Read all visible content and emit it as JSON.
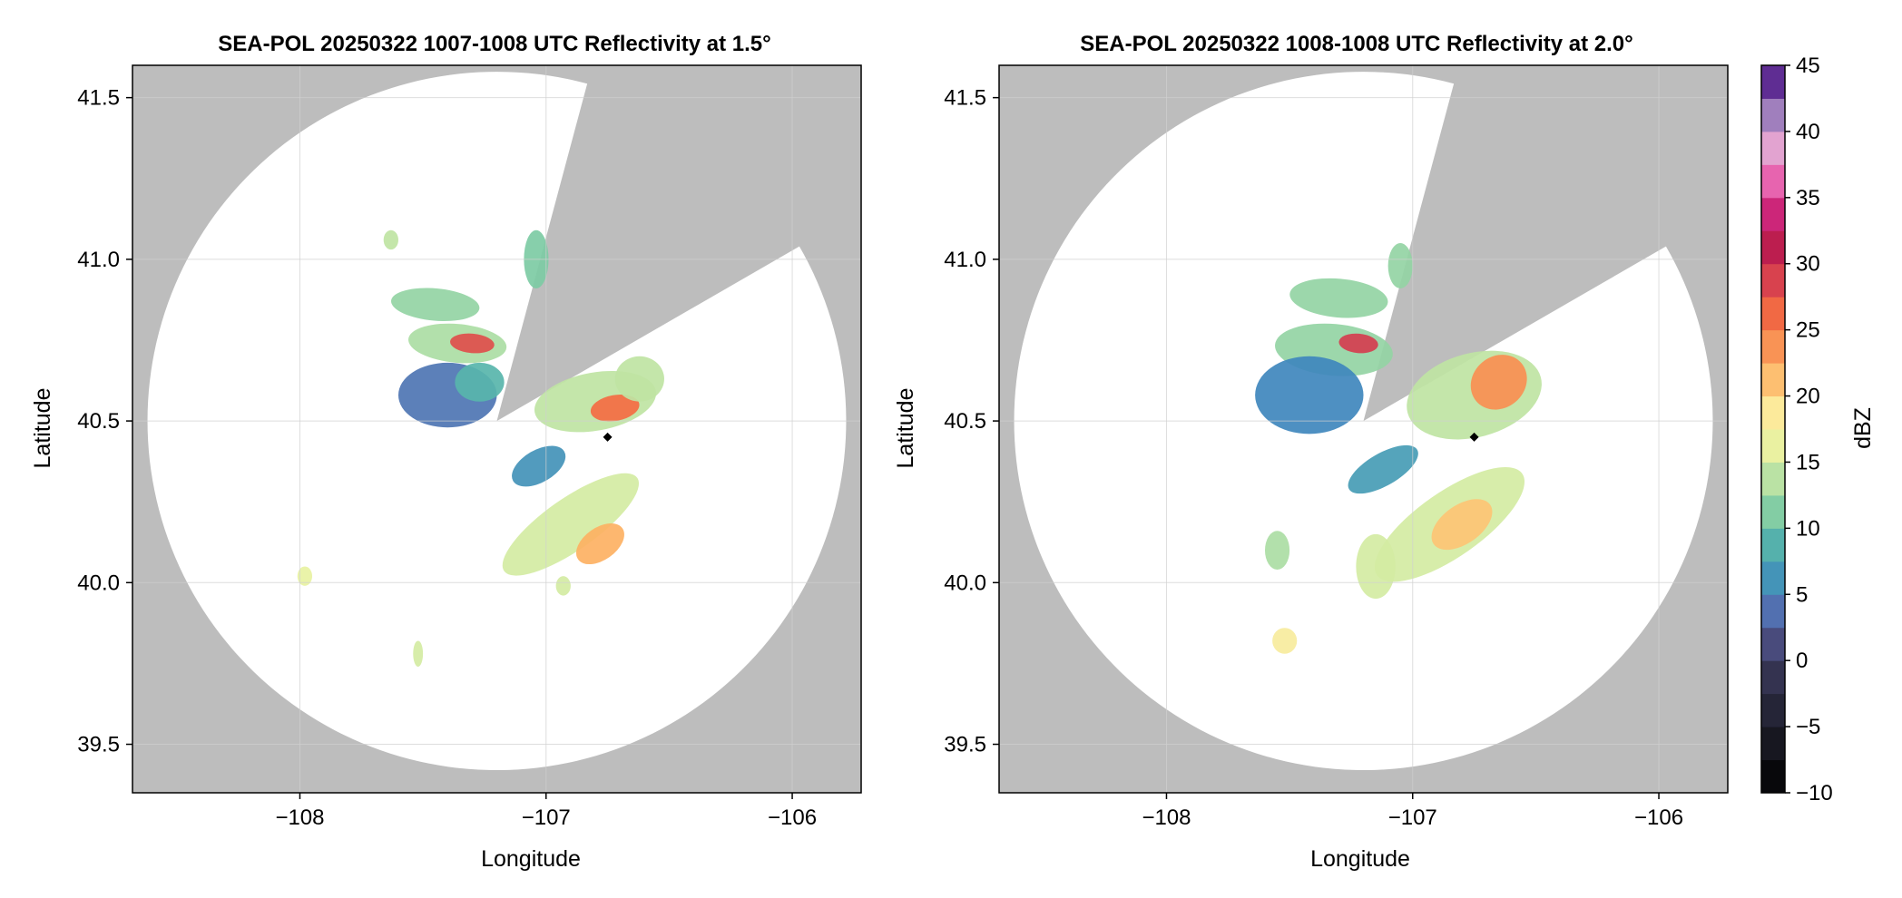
{
  "chart_data": [
    {
      "type": "heatmap",
      "title": "SEA-POL 20250322 1007-1008 UTC Reflectivity at 1.5°",
      "xlabel": "Longitude",
      "ylabel": "Latitude",
      "xlim": [
        -108.68,
        -105.72
      ],
      "ylim": [
        39.35,
        41.6
      ],
      "xticks": [
        -108,
        -107,
        -106
      ],
      "xtick_labels": [
        "−108",
        "−107",
        "−106"
      ],
      "yticks": [
        39.5,
        40.0,
        40.5,
        41.0,
        41.5
      ],
      "ytick_labels": [
        "39.5",
        "40.0",
        "40.5",
        "41.0",
        "41.5"
      ],
      "grid": true,
      "radar_center": [
        -107.2,
        40.5
      ],
      "coverage_radius_deg_lat": 1.08,
      "blocked_azimuth_ranges_deg": [
        [
          15,
          60
        ]
      ],
      "marker": {
        "lon": -106.75,
        "lat": 40.45,
        "symbol": "diamond",
        "color": "#000000"
      },
      "echo_cells": [
        {
          "lon": -106.8,
          "lat": 40.56,
          "rx": 0.25,
          "ry": 0.09,
          "rot": -10,
          "dbz": 14
        },
        {
          "lon": -106.72,
          "lat": 40.54,
          "rx": 0.1,
          "ry": 0.04,
          "rot": -10,
          "dbz": 26
        },
        {
          "lon": -106.62,
          "lat": 40.63,
          "rx": 0.1,
          "ry": 0.07,
          "rot": 0,
          "dbz": 14
        },
        {
          "lon": -107.36,
          "lat": 40.74,
          "rx": 0.2,
          "ry": 0.06,
          "rot": 5,
          "dbz": 13
        },
        {
          "lon": -107.3,
          "lat": 40.74,
          "rx": 0.09,
          "ry": 0.03,
          "rot": 5,
          "dbz": 28
        },
        {
          "lon": -107.45,
          "lat": 40.86,
          "rx": 0.18,
          "ry": 0.05,
          "rot": 5,
          "dbz": 12
        },
        {
          "lon": -107.4,
          "lat": 40.58,
          "rx": 0.2,
          "ry": 0.1,
          "rot": 0,
          "dbz": 4
        },
        {
          "lon": -107.27,
          "lat": 40.62,
          "rx": 0.1,
          "ry": 0.06,
          "rot": 0,
          "dbz": 9
        },
        {
          "lon": -107.04,
          "lat": 41.0,
          "rx": 0.05,
          "ry": 0.09,
          "rot": 0,
          "dbz": 11
        },
        {
          "lon": -106.9,
          "lat": 40.18,
          "rx": 0.33,
          "ry": 0.08,
          "rot": -35,
          "dbz": 15
        },
        {
          "lon": -106.78,
          "lat": 40.12,
          "rx": 0.11,
          "ry": 0.05,
          "rot": -35,
          "dbz": 22
        },
        {
          "lon": -107.03,
          "lat": 40.36,
          "rx": 0.12,
          "ry": 0.05,
          "rot": -30,
          "dbz": 6
        },
        {
          "lon": -107.98,
          "lat": 40.02,
          "rx": 0.03,
          "ry": 0.03,
          "rot": 0,
          "dbz": 16
        },
        {
          "lon": -106.93,
          "lat": 39.99,
          "rx": 0.03,
          "ry": 0.03,
          "rot": 0,
          "dbz": 15
        },
        {
          "lon": -107.63,
          "lat": 41.06,
          "rx": 0.03,
          "ry": 0.03,
          "rot": 0,
          "dbz": 14
        },
        {
          "lon": -107.52,
          "lat": 39.78,
          "rx": 0.02,
          "ry": 0.04,
          "rot": 0,
          "dbz": 15
        }
      ]
    },
    {
      "type": "heatmap",
      "title": "SEA-POL 20250322 1008-1008 UTC Reflectivity at 2.0°",
      "xlabel": "Longitude",
      "ylabel": "Latitude",
      "xlim": [
        -108.68,
        -105.72
      ],
      "ylim": [
        39.35,
        41.6
      ],
      "xticks": [
        -108,
        -107,
        -106
      ],
      "xtick_labels": [
        "−108",
        "−107",
        "−106"
      ],
      "yticks": [
        39.5,
        40.0,
        40.5,
        41.0,
        41.5
      ],
      "ytick_labels": [
        "39.5",
        "40.0",
        "40.5",
        "41.0",
        "41.5"
      ],
      "grid": true,
      "radar_center": [
        -107.2,
        40.5
      ],
      "coverage_radius_deg_lat": 1.08,
      "blocked_azimuth_ranges_deg": [
        [
          15,
          60
        ]
      ],
      "marker": {
        "lon": -106.75,
        "lat": 40.45,
        "symbol": "diamond",
        "color": "#000000"
      },
      "echo_cells": [
        {
          "lon": -106.75,
          "lat": 40.58,
          "rx": 0.28,
          "ry": 0.13,
          "rot": -15,
          "dbz": 14
        },
        {
          "lon": -106.65,
          "lat": 40.62,
          "rx": 0.12,
          "ry": 0.08,
          "rot": -40,
          "dbz": 24
        },
        {
          "lon": -107.32,
          "lat": 40.72,
          "rx": 0.24,
          "ry": 0.08,
          "rot": 5,
          "dbz": 12
        },
        {
          "lon": -107.22,
          "lat": 40.74,
          "rx": 0.08,
          "ry": 0.03,
          "rot": 5,
          "dbz": 29
        },
        {
          "lon": -107.42,
          "lat": 40.58,
          "rx": 0.22,
          "ry": 0.12,
          "rot": 0,
          "dbz": 5
        },
        {
          "lon": -107.3,
          "lat": 40.88,
          "rx": 0.2,
          "ry": 0.06,
          "rot": 5,
          "dbz": 12
        },
        {
          "lon": -106.85,
          "lat": 40.18,
          "rx": 0.36,
          "ry": 0.1,
          "rot": -35,
          "dbz": 15
        },
        {
          "lon": -106.8,
          "lat": 40.18,
          "rx": 0.14,
          "ry": 0.06,
          "rot": -35,
          "dbz": 21
        },
        {
          "lon": -107.12,
          "lat": 40.35,
          "rx": 0.16,
          "ry": 0.05,
          "rot": -30,
          "dbz": 7
        },
        {
          "lon": -107.15,
          "lat": 40.05,
          "rx": 0.08,
          "ry": 0.1,
          "rot": 0,
          "dbz": 15
        },
        {
          "lon": -107.52,
          "lat": 39.82,
          "rx": 0.05,
          "ry": 0.04,
          "rot": 0,
          "dbz": 18
        },
        {
          "lon": -107.55,
          "lat": 40.1,
          "rx": 0.05,
          "ry": 0.06,
          "rot": 0,
          "dbz": 13
        },
        {
          "lon": -107.05,
          "lat": 40.98,
          "rx": 0.05,
          "ry": 0.07,
          "rot": 0,
          "dbz": 12
        }
      ]
    }
  ],
  "colorbar": {
    "label": "dBZ",
    "min": -10,
    "max": 45,
    "step": 2.5,
    "ticks": [
      45,
      40,
      35,
      30,
      25,
      20,
      15,
      10,
      5,
      0,
      -5,
      -10
    ],
    "tick_labels": [
      "45",
      "40",
      "35",
      "30",
      "25",
      "20",
      "15",
      "10",
      "5",
      "0",
      "−5",
      "−10"
    ],
    "stops": [
      {
        "v": -10,
        "c": "#000000"
      },
      {
        "v": -5,
        "c": "#1e1e2a"
      },
      {
        "v": 0,
        "c": "#3b3a5c"
      },
      {
        "v": 3,
        "c": "#5d62a8"
      },
      {
        "v": 5,
        "c": "#3f87bd"
      },
      {
        "v": 8,
        "c": "#4aa7b1"
      },
      {
        "v": 10,
        "c": "#66c2a4"
      },
      {
        "v": 13,
        "c": "#abdda4"
      },
      {
        "v": 16,
        "c": "#e8f2a2"
      },
      {
        "v": 19,
        "c": "#fee99a"
      },
      {
        "v": 22,
        "c": "#fdb163"
      },
      {
        "v": 26,
        "c": "#f46d43"
      },
      {
        "v": 29,
        "c": "#d53e4f"
      },
      {
        "v": 32,
        "c": "#b3134f"
      },
      {
        "v": 35,
        "c": "#dd3497"
      },
      {
        "v": 38,
        "c": "#f4a6d0"
      },
      {
        "v": 40,
        "c": "#c39fd0"
      },
      {
        "v": 42,
        "c": "#8b6bb1"
      },
      {
        "v": 45,
        "c": "#3f007d"
      }
    ]
  },
  "colors": {
    "no_coverage": "#bdbdbd",
    "coverage": "#ffffff",
    "grid": "#d0d0d0"
  }
}
